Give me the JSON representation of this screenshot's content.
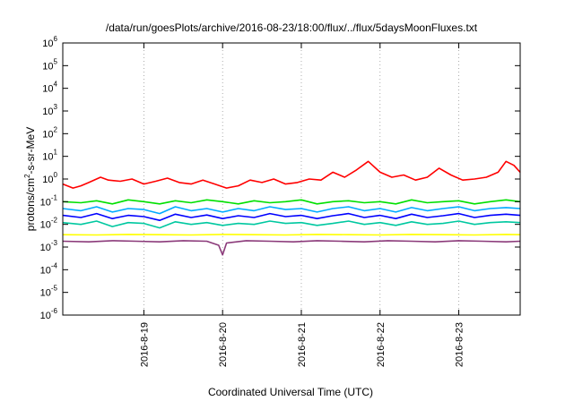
{
  "chart_data": {
    "type": "line",
    "title": "/data/run/goesPlots/archive/2016-08-23/18:00/flux/../flux/5daysMoonFluxes.txt",
    "xlabel": "Coordinated Universal Time (UTC)",
    "ylabel": {
      "pre": "protons/cm",
      "sup": "2",
      "post": "-s-sr-MeV"
    },
    "yscale": "log",
    "ylim": [
      1e-06,
      1000000.0
    ],
    "y_ticks": [
      {
        "value": 1e-06,
        "base": "10",
        "exp": "-6"
      },
      {
        "value": 1e-05,
        "base": "10",
        "exp": "-5"
      },
      {
        "value": 0.0001,
        "base": "10",
        "exp": "-4"
      },
      {
        "value": 0.001,
        "base": "10",
        "exp": "-3"
      },
      {
        "value": 0.01,
        "base": "10",
        "exp": "-2"
      },
      {
        "value": 0.1,
        "base": "10",
        "exp": "-1"
      },
      {
        "value": 1,
        "base": "10",
        "exp": "0"
      },
      {
        "value": 10,
        "base": "10",
        "exp": "1"
      },
      {
        "value": 100,
        "base": "10",
        "exp": "2"
      },
      {
        "value": 1000,
        "base": "10",
        "exp": "3"
      },
      {
        "value": 10000,
        "base": "10",
        "exp": "4"
      },
      {
        "value": 100000,
        "base": "10",
        "exp": "5"
      },
      {
        "value": 1000000,
        "base": "10",
        "exp": "6"
      }
    ],
    "x_unit": "day",
    "xlim": [
      -1.03,
      4.78
    ],
    "x_ticks": [
      {
        "value": 0,
        "label": "2016-8-19"
      },
      {
        "value": 1,
        "label": "2016-8-20"
      },
      {
        "value": 2,
        "label": "2016-8-21"
      },
      {
        "value": 3,
        "label": "2016-8-22"
      },
      {
        "value": 4,
        "label": "2016-8-23"
      }
    ],
    "grid": {
      "x": true,
      "y": false,
      "style": "dotted"
    },
    "series": [
      {
        "color": "#ff0000",
        "x": [
          -1.03,
          -0.9,
          -0.8,
          -0.7,
          -0.55,
          -0.45,
          -0.3,
          -0.15,
          0.0,
          0.15,
          0.3,
          0.45,
          0.6,
          0.75,
          0.9,
          1.05,
          1.2,
          1.35,
          1.5,
          1.65,
          1.8,
          1.95,
          2.1,
          2.25,
          2.4,
          2.55,
          2.7,
          2.85,
          3.0,
          3.15,
          3.3,
          3.45,
          3.6,
          3.75,
          3.9,
          4.05,
          4.2,
          4.35,
          4.5,
          4.6,
          4.7,
          4.78
        ],
        "y": [
          0.6,
          0.4,
          0.5,
          0.7,
          1.2,
          0.9,
          0.8,
          1.0,
          0.6,
          0.8,
          1.1,
          0.7,
          0.6,
          0.9,
          0.6,
          0.4,
          0.5,
          0.9,
          0.7,
          1.0,
          0.6,
          0.7,
          1.0,
          0.9,
          2.0,
          1.2,
          2.5,
          6.0,
          2.0,
          1.2,
          1.5,
          0.9,
          1.2,
          3.0,
          1.5,
          0.9,
          1.0,
          1.2,
          2.0,
          6.0,
          4.0,
          2.0
        ]
      },
      {
        "color": "#00e000",
        "x": [
          -1.03,
          -0.8,
          -0.6,
          -0.4,
          -0.2,
          0.0,
          0.2,
          0.4,
          0.6,
          0.8,
          1.0,
          1.2,
          1.4,
          1.6,
          1.8,
          2.0,
          2.2,
          2.4,
          2.6,
          2.8,
          3.0,
          3.2,
          3.4,
          3.6,
          3.8,
          4.0,
          4.2,
          4.4,
          4.6,
          4.78
        ],
        "y": [
          0.1,
          0.09,
          0.11,
          0.08,
          0.12,
          0.1,
          0.08,
          0.11,
          0.09,
          0.12,
          0.1,
          0.08,
          0.11,
          0.09,
          0.1,
          0.12,
          0.08,
          0.1,
          0.11,
          0.09,
          0.1,
          0.08,
          0.12,
          0.09,
          0.1,
          0.11,
          0.08,
          0.1,
          0.12,
          0.1
        ]
      },
      {
        "color": "#00aaff",
        "x": [
          -1.03,
          -0.8,
          -0.6,
          -0.4,
          -0.2,
          0.0,
          0.2,
          0.4,
          0.6,
          0.8,
          1.0,
          1.2,
          1.4,
          1.6,
          1.8,
          2.0,
          2.2,
          2.4,
          2.6,
          2.8,
          3.0,
          3.2,
          3.4,
          3.6,
          3.8,
          4.0,
          4.2,
          4.4,
          4.6,
          4.78
        ],
        "y": [
          0.05,
          0.04,
          0.06,
          0.035,
          0.05,
          0.045,
          0.03,
          0.06,
          0.04,
          0.05,
          0.035,
          0.05,
          0.04,
          0.06,
          0.045,
          0.05,
          0.035,
          0.05,
          0.06,
          0.04,
          0.05,
          0.035,
          0.055,
          0.04,
          0.05,
          0.06,
          0.04,
          0.05,
          0.055,
          0.05
        ]
      },
      {
        "color": "#0000ff",
        "x": [
          -1.03,
          -0.8,
          -0.6,
          -0.4,
          -0.2,
          0.0,
          0.2,
          0.4,
          0.6,
          0.8,
          1.0,
          1.2,
          1.4,
          1.6,
          1.8,
          2.0,
          2.2,
          2.4,
          2.6,
          2.8,
          3.0,
          3.2,
          3.4,
          3.6,
          3.8,
          4.0,
          4.2,
          4.4,
          4.6,
          4.78
        ],
        "y": [
          0.025,
          0.02,
          0.03,
          0.018,
          0.025,
          0.022,
          0.015,
          0.028,
          0.02,
          0.026,
          0.018,
          0.024,
          0.02,
          0.03,
          0.022,
          0.025,
          0.018,
          0.024,
          0.03,
          0.02,
          0.025,
          0.018,
          0.028,
          0.02,
          0.024,
          0.03,
          0.02,
          0.025,
          0.028,
          0.025
        ]
      },
      {
        "color": "#00c8a0",
        "x": [
          -1.03,
          -0.8,
          -0.6,
          -0.4,
          -0.2,
          0.0,
          0.2,
          0.4,
          0.6,
          0.8,
          1.0,
          1.2,
          1.4,
          1.6,
          1.8,
          2.0,
          2.2,
          2.4,
          2.6,
          2.8,
          3.0,
          3.2,
          3.4,
          3.6,
          3.8,
          4.0,
          4.2,
          4.4,
          4.6,
          4.78
        ],
        "y": [
          0.012,
          0.01,
          0.014,
          0.008,
          0.012,
          0.011,
          0.007,
          0.013,
          0.01,
          0.012,
          0.009,
          0.011,
          0.01,
          0.014,
          0.011,
          0.012,
          0.009,
          0.011,
          0.014,
          0.01,
          0.012,
          0.009,
          0.013,
          0.01,
          0.011,
          0.014,
          0.01,
          0.012,
          0.013,
          0.012
        ]
      },
      {
        "color": "#ffff00",
        "x": [
          -1.03,
          -0.6,
          -0.2,
          0.2,
          0.6,
          1.0,
          1.4,
          1.8,
          2.2,
          2.6,
          3.0,
          3.4,
          3.8,
          4.2,
          4.6,
          4.78
        ],
        "y": [
          0.0035,
          0.0034,
          0.0036,
          0.0035,
          0.0034,
          0.0036,
          0.0035,
          0.0034,
          0.0036,
          0.0035,
          0.0034,
          0.0036,
          0.0035,
          0.0034,
          0.0036,
          0.0035
        ]
      },
      {
        "color": "#8b3a7a",
        "x": [
          -1.03,
          -0.7,
          -0.4,
          -0.1,
          0.2,
          0.5,
          0.8,
          0.95,
          1.0,
          1.05,
          1.3,
          1.6,
          1.9,
          2.2,
          2.5,
          2.8,
          3.1,
          3.4,
          3.7,
          4.0,
          4.3,
          4.6,
          4.78
        ],
        "y": [
          0.0018,
          0.0017,
          0.0019,
          0.0018,
          0.0017,
          0.0019,
          0.0018,
          0.0012,
          0.00045,
          0.0015,
          0.0019,
          0.0018,
          0.0017,
          0.0019,
          0.0018,
          0.0017,
          0.0019,
          0.0018,
          0.0017,
          0.0019,
          0.0018,
          0.0017,
          0.0018
        ]
      }
    ]
  }
}
